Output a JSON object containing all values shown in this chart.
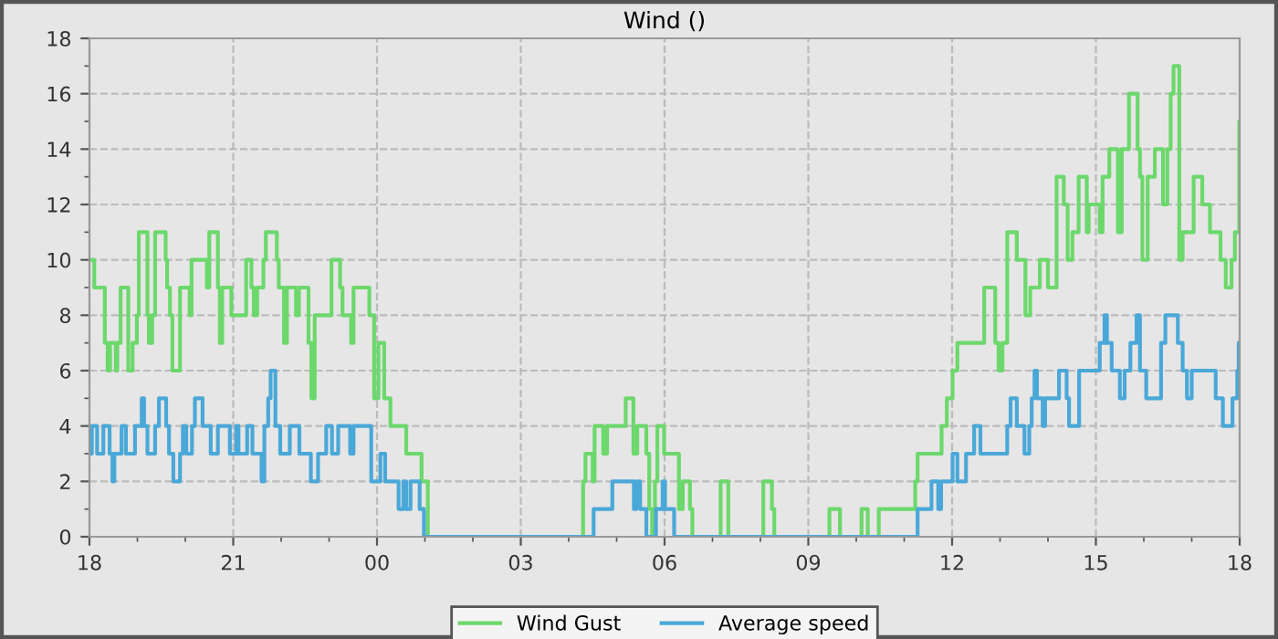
{
  "chart_data": {
    "type": "step",
    "title": "Wind ()",
    "xlim": [
      18,
      42
    ],
    "xticks": [
      {
        "value": 18,
        "label": "18"
      },
      {
        "value": 21,
        "label": "21"
      },
      {
        "value": 24,
        "label": "00"
      },
      {
        "value": 27,
        "label": "03"
      },
      {
        "value": 30,
        "label": "06"
      },
      {
        "value": 33,
        "label": "09"
      },
      {
        "value": 36,
        "label": "12"
      },
      {
        "value": 39,
        "label": "15"
      },
      {
        "value": 42,
        "label": "18"
      }
    ],
    "ylim": [
      0,
      18
    ],
    "yticks": [
      0,
      2,
      4,
      6,
      8,
      10,
      12,
      14,
      16,
      18
    ],
    "grid": true,
    "legend": "bottom",
    "line_style": "solid",
    "series": [
      {
        "name": "Wind Gust",
        "color": "#6cd86c",
        "x": [
          18.0,
          18.1,
          18.32,
          18.38,
          18.43,
          18.55,
          18.58,
          18.65,
          18.81,
          18.9,
          18.99,
          19.03,
          19.21,
          19.24,
          19.31,
          19.37,
          19.59,
          19.62,
          19.68,
          19.73,
          19.89,
          20.09,
          20.13,
          20.45,
          20.5,
          20.68,
          20.72,
          20.77,
          20.96,
          21.27,
          21.38,
          21.43,
          21.5,
          21.63,
          21.68,
          21.91,
          21.95,
          22.06,
          22.12,
          22.31,
          22.37,
          22.57,
          22.63,
          22.7,
          23.05,
          23.23,
          23.28,
          23.46,
          23.51,
          23.84,
          23.94,
          24.03,
          24.15,
          24.28,
          24.61,
          24.93,
          25.06,
          28.3,
          28.35,
          28.5,
          28.54,
          28.72,
          28.8,
          29.19,
          29.35,
          29.43,
          29.62,
          29.68,
          29.74,
          29.8,
          29.85,
          29.99,
          30.3,
          30.38,
          30.53,
          30.58,
          31.17,
          31.33,
          32.06,
          32.24,
          32.29,
          33.44,
          33.66,
          34.11,
          34.24,
          34.47,
          35.23,
          35.28,
          35.78,
          35.89,
          36.01,
          36.11,
          36.17,
          36.67,
          36.9,
          36.97,
          37.05,
          37.15,
          37.35,
          37.53,
          37.63,
          37.83,
          38.0,
          38.18,
          38.33,
          38.41,
          38.51,
          38.64,
          38.81,
          38.85,
          39.08,
          39.14,
          39.28,
          39.46,
          39.54,
          39.69,
          39.87,
          39.92,
          39.97,
          40.08,
          40.23,
          40.4,
          40.49,
          40.56,
          40.62,
          40.74,
          40.81,
          41.04,
          41.22,
          41.38,
          41.6,
          41.71,
          41.83,
          41.9,
          41.99,
          42.0
        ],
        "values": [
          10,
          9,
          7,
          6,
          7,
          6,
          7,
          9,
          6,
          7,
          8,
          11,
          8,
          7,
          8,
          11,
          10,
          9,
          8,
          6,
          9,
          8,
          10,
          9,
          11,
          9,
          7,
          9,
          8,
          10,
          9,
          8,
          9,
          10,
          11,
          10,
          9,
          7,
          9,
          8,
          9,
          7,
          5,
          8,
          10,
          9,
          8,
          7,
          9,
          8,
          5,
          7,
          5,
          4,
          3,
          2,
          0,
          2,
          3,
          2,
          4,
          3,
          4,
          5,
          3,
          4,
          3,
          1,
          0,
          2,
          4,
          3,
          1,
          2,
          1,
          0,
          2,
          0,
          2,
          1,
          0,
          1,
          0,
          1,
          0,
          1,
          2,
          3,
          4,
          5,
          6,
          7,
          7,
          9,
          7,
          6,
          7,
          11,
          10,
          8,
          9,
          10,
          9,
          13,
          12,
          10,
          11,
          13,
          11,
          12,
          11,
          13,
          14,
          11,
          14,
          16,
          14,
          13,
          10,
          13,
          14,
          12,
          14,
          16,
          17,
          10,
          11,
          13,
          12,
          11,
          10,
          9,
          10,
          11,
          15,
          15
        ]
      },
      {
        "name": "Average speed",
        "color": "#4aa8d8",
        "x": [
          18.0,
          18.05,
          18.16,
          18.29,
          18.42,
          18.48,
          18.52,
          18.67,
          18.76,
          18.95,
          19.09,
          19.14,
          19.21,
          19.37,
          19.45,
          19.6,
          19.66,
          19.75,
          19.89,
          19.95,
          20.02,
          20.14,
          20.2,
          20.36,
          20.53,
          20.68,
          20.93,
          21.06,
          21.11,
          21.29,
          21.4,
          21.59,
          21.65,
          21.73,
          21.78,
          21.88,
          21.98,
          22.18,
          22.38,
          22.62,
          22.77,
          22.94,
          23.06,
          23.19,
          23.44,
          23.51,
          23.88,
          24.07,
          24.17,
          24.45,
          24.55,
          24.61,
          24.7,
          24.89,
          24.98,
          28.52,
          28.91,
          29.36,
          29.41,
          29.49,
          29.62,
          29.82,
          29.96,
          30.01,
          30.2,
          35.28,
          35.57,
          35.71,
          35.77,
          36.01,
          36.11,
          36.29,
          36.46,
          36.59,
          37.15,
          37.22,
          37.35,
          37.51,
          37.61,
          37.66,
          37.72,
          37.77,
          37.89,
          37.94,
          38.23,
          38.39,
          38.44,
          38.65,
          39.08,
          39.18,
          39.23,
          39.33,
          39.5,
          39.6,
          39.72,
          39.85,
          39.92,
          40.05,
          40.36,
          40.45,
          40.71,
          40.81,
          40.9,
          41.0,
          41.5,
          41.65,
          41.85,
          41.95,
          41.98,
          42.0
        ],
        "values": [
          3,
          4,
          3,
          4,
          3,
          2,
          3,
          4,
          3,
          4,
          5,
          4,
          3,
          4,
          5,
          4,
          3,
          2,
          3,
          4,
          3,
          4,
          5,
          4,
          3,
          4,
          3,
          4,
          3,
          4,
          3,
          2,
          4,
          5,
          6,
          4,
          3,
          4,
          3,
          2,
          3,
          4,
          3,
          4,
          3,
          4,
          2,
          3,
          2,
          1,
          2,
          1,
          2,
          1,
          0,
          1,
          2,
          1,
          2,
          1,
          0,
          1,
          2,
          1,
          0,
          1,
          2,
          1,
          2,
          3,
          2,
          3,
          4,
          3,
          4,
          5,
          4,
          3,
          4,
          5,
          6,
          5,
          4,
          5,
          6,
          5,
          4,
          6,
          7,
          8,
          7,
          6,
          5,
          6,
          7,
          8,
          6,
          5,
          7,
          8,
          7,
          6,
          5,
          6,
          5,
          4,
          5,
          6,
          7,
          7
        ]
      }
    ]
  }
}
